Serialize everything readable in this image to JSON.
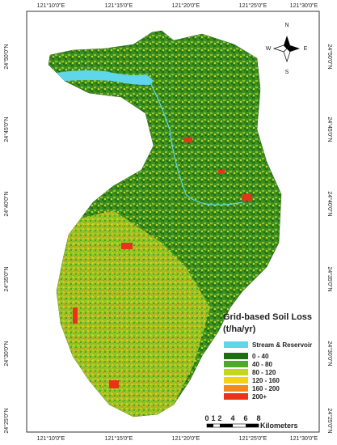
{
  "map": {
    "top_labels": [
      "121°10'0\"E",
      "121°15'0\"E",
      "121°20'0\"E",
      "121°25'0\"E",
      "121°30'0\"E"
    ],
    "bottom_labels": [
      "121°10'0\"E",
      "121°15'0\"E",
      "121°20'0\"E",
      "121°25'0\"E",
      "121°30'0\"E"
    ],
    "left_labels": [
      "24°50'0\"N",
      "24°45'0\"N",
      "24°40'0\"N",
      "24°35'0\"N",
      "24°30'0\"N",
      "24°25'0\"N"
    ],
    "right_labels": [
      "24°50'0\"N",
      "24°45'0\"N",
      "24°40'0\"N",
      "24°35'0\"N",
      "24°30'0\"N",
      "24°25'0\"N"
    ],
    "compass": {
      "north": "N",
      "south": "S",
      "east": "E",
      "west": "W"
    },
    "legend": {
      "title": "Grid-based Soil Loss",
      "unit": "(t/ha/yr)",
      "items": [
        {
          "label": "Stream & Reservoir",
          "color": "#5fd6ea"
        },
        {
          "label": "0 - 40",
          "color": "#1e6e12"
        },
        {
          "label": "40 - 80",
          "color": "#4fa82a"
        },
        {
          "label": "80 - 120",
          "color": "#c5d61e"
        },
        {
          "label": "120 - 160",
          "color": "#f5d21a"
        },
        {
          "label": "160 - 200",
          "color": "#f08a1e"
        },
        {
          "label": "200+",
          "color": "#e8321c"
        }
      ]
    },
    "scale": {
      "ticks": [
        "0",
        "1",
        "2",
        "4",
        "6",
        "8"
      ],
      "unit": "Kilometers"
    }
  }
}
